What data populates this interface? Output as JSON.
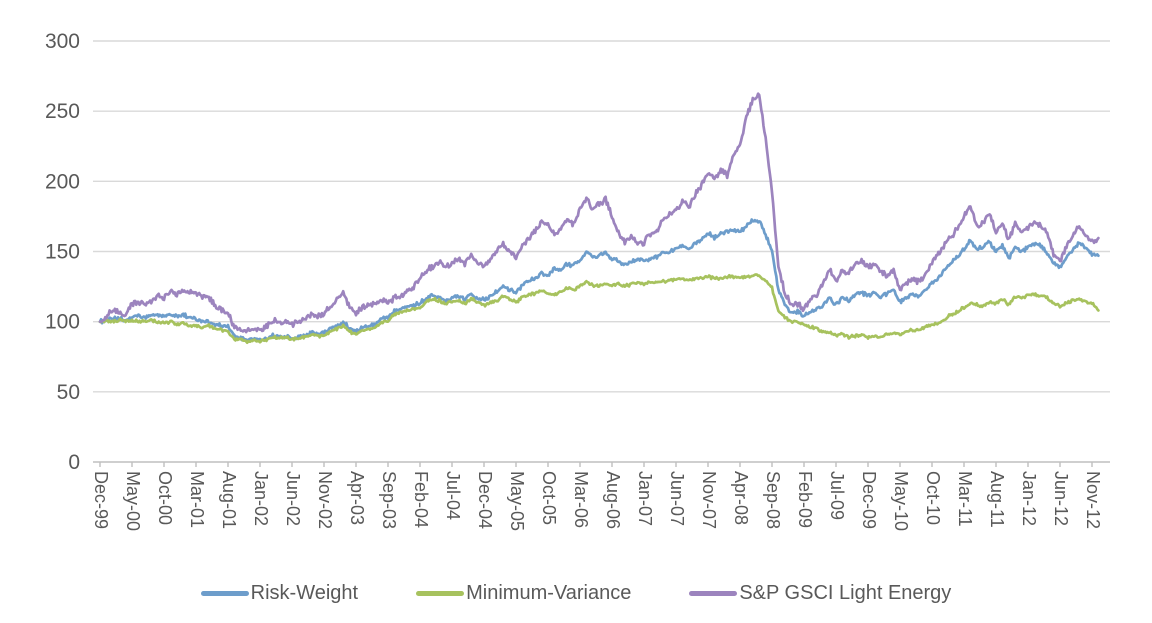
{
  "chart_data": {
    "type": "line",
    "title": "",
    "grid": "horizontal",
    "legend_position": "bottom",
    "values_interval": "monthly",
    "base_value": 100,
    "x_axis": {
      "start_month": "Dec-99",
      "end_month": "Dec-12",
      "tick_interval_months": 5,
      "tick_labels": [
        "Dec-99",
        "May-00",
        "Oct-00",
        "Mar-01",
        "Aug-01",
        "Jan-02",
        "Jun-02",
        "Nov-02",
        "Apr-03",
        "Sep-03",
        "Feb-04",
        "Jul-04",
        "Dec-04",
        "May-05",
        "Oct-05",
        "Mar-06",
        "Aug-06",
        "Jan-07",
        "Jun-07",
        "Nov-07",
        "Apr-08",
        "Sep-08",
        "Feb-09",
        "Jul-09",
        "Dec-09",
        "May-10",
        "Oct-10",
        "Mar-11",
        "Aug-11",
        "Jan-12",
        "Jun-12",
        "Nov-12"
      ]
    },
    "y_axis": {
      "min": 0,
      "max": 300,
      "ticks": [
        300,
        250,
        200,
        150,
        100,
        50,
        0
      ]
    },
    "colors": {
      "gridline": "#D9D9D9",
      "axis": "#BFBFBF",
      "label_text": "#595959"
    },
    "series": [
      {
        "name": "Risk-Weight",
        "color": "#6D9DCB",
        "values": [
          100,
          101,
          102,
          102,
          101,
          103,
          104,
          103,
          104,
          105,
          104,
          105,
          104,
          105,
          103,
          102,
          100,
          100,
          98,
          97,
          96,
          90,
          88,
          87,
          88,
          87,
          88,
          90,
          89,
          90,
          88,
          89,
          90,
          92,
          91,
          92,
          95,
          97,
          100,
          95,
          93,
          96,
          97,
          98,
          102,
          103,
          108,
          110,
          111,
          112,
          113,
          117,
          119,
          118,
          115,
          117,
          118,
          116,
          120,
          117,
          116,
          118,
          122,
          125,
          123,
          121,
          126,
          129,
          131,
          134,
          132,
          138,
          137,
          141,
          140,
          143,
          150,
          146,
          147,
          149,
          145,
          143,
          140,
          143,
          145,
          143,
          145,
          146,
          149,
          150,
          152,
          155,
          152,
          156,
          158,
          163,
          160,
          163,
          164,
          165,
          164,
          168,
          172,
          172,
          162,
          150,
          122,
          112,
          106,
          107,
          104,
          107,
          109,
          112,
          117,
          112,
          117,
          115,
          120,
          121,
          118,
          121,
          118,
          120,
          123,
          114,
          117,
          120,
          118,
          122,
          127,
          131,
          137,
          142,
          146,
          152,
          158,
          152,
          153,
          157,
          150,
          154,
          145,
          153,
          150,
          153,
          156,
          154,
          149,
          141,
          139,
          146,
          151,
          156,
          152,
          148,
          147
        ]
      },
      {
        "name": "Minimum-Variance",
        "color": "#A7C25E",
        "values": [
          100,
          101,
          100,
          101,
          100,
          101,
          100,
          100,
          101,
          100,
          99,
          100,
          98,
          99,
          97,
          97,
          96,
          97,
          95,
          94,
          93,
          88,
          87,
          86,
          87,
          86,
          87,
          89,
          88,
          89,
          87,
          88,
          89,
          91,
          90,
          90,
          93,
          95,
          97,
          93,
          91,
          94,
          95,
          96,
          99,
          100,
          105,
          107,
          108,
          109,
          110,
          114,
          116,
          115,
          112,
          114,
          115,
          113,
          116,
          114,
          112,
          113,
          115,
          118,
          116,
          114,
          117,
          119,
          120,
          122,
          120,
          119,
          121,
          124,
          123,
          125,
          128,
          126,
          125,
          127,
          126,
          127,
          125,
          127,
          128,
          127,
          128,
          128,
          129,
          129,
          130,
          131,
          129,
          131,
          131,
          132,
          131,
          131,
          132,
          132,
          131,
          132,
          133,
          133,
          129,
          124,
          108,
          103,
          100,
          100,
          98,
          96,
          95,
          93,
          92,
          90,
          91,
          89,
          90,
          91,
          89,
          90,
          89,
          91,
          92,
          91,
          93,
          94,
          94,
          96,
          98,
          99,
          102,
          105,
          107,
          110,
          113,
          112,
          111,
          114,
          113,
          116,
          112,
          118,
          117,
          119,
          120,
          118,
          117,
          113,
          111,
          113,
          115,
          116,
          114,
          113,
          108
        ]
      },
      {
        "name": "S&P GSCI Light Energy",
        "color": "#9C84BE",
        "values": [
          100,
          104,
          108,
          106,
          105,
          112,
          114,
          112,
          115,
          119,
          117,
          121,
          119,
          122,
          120,
          121,
          118,
          117,
          112,
          108,
          106,
          96,
          94,
          93,
          95,
          94,
          96,
          101,
          99,
          100,
          98,
          100,
          102,
          105,
          104,
          106,
          110,
          115,
          121,
          110,
          106,
          110,
          112,
          113,
          115,
          113,
          117,
          118,
          121,
          124,
          131,
          136,
          139,
          142,
          138,
          142,
          145,
          141,
          148,
          142,
          139,
          143,
          151,
          156,
          150,
          146,
          154,
          160,
          165,
          172,
          168,
          162,
          166,
          173,
          170,
          180,
          188,
          180,
          184,
          187,
          176,
          163,
          157,
          161,
          155,
          156,
          162,
          165,
          172,
          176,
          180,
          186,
          182,
          191,
          197,
          205,
          202,
          208,
          204,
          220,
          226,
          245,
          258,
          262,
          230,
          193,
          140,
          120,
          112,
          113,
          109,
          116,
          119,
          127,
          137,
          128,
          137,
          134,
          141,
          143,
          138,
          141,
          135,
          132,
          136,
          124,
          127,
          131,
          128,
          134,
          142,
          148,
          155,
          161,
          166,
          175,
          182,
          168,
          170,
          176,
          164,
          170,
          158,
          170,
          164,
          166,
          171,
          168,
          162,
          148,
          143,
          153,
          161,
          168,
          161,
          157,
          159
        ]
      }
    ]
  }
}
